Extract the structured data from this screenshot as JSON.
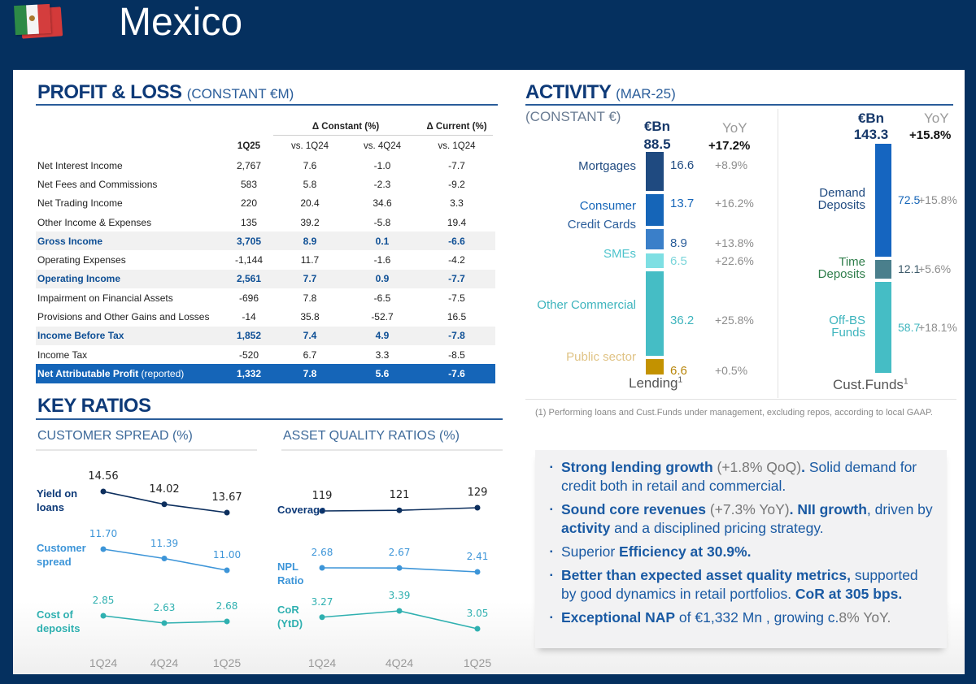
{
  "header": {
    "title": "Mexico",
    "flag_icon": "mexico-flag-icon"
  },
  "profit_loss": {
    "title": "PROFIT & LOSS",
    "subtitle": "(CONSTANT €M)",
    "group_headers": [
      "Δ Constant (%)",
      "Δ Current (%)"
    ],
    "columns": [
      "1Q25",
      "vs. 1Q24",
      "vs. 4Q24",
      "vs. 1Q24"
    ],
    "rows": [
      {
        "label": "Net Interest Income",
        "note": "",
        "values": [
          "2,767",
          "7.6",
          "-1.0",
          "-7.7"
        ],
        "style": "normal"
      },
      {
        "label": "Net Fees and Commissions",
        "note": "",
        "values": [
          "583",
          "5.8",
          "-2.3",
          "-9.2"
        ],
        "style": "normal"
      },
      {
        "label": "Net Trading Income",
        "note": "",
        "values": [
          "220",
          "20.4",
          "34.6",
          "3.3"
        ],
        "style": "normal"
      },
      {
        "label": "Other Income & Expenses",
        "note": "",
        "values": [
          "135",
          "39.2",
          "-5.8",
          "19.4"
        ],
        "style": "normal"
      },
      {
        "label": "Gross Income",
        "note": "",
        "values": [
          "3,705",
          "8.9",
          "0.1",
          "-6.6"
        ],
        "style": "hl"
      },
      {
        "label": "Operating Expenses",
        "note": "",
        "values": [
          "-1,144",
          "11.7",
          "-1.6",
          "-4.2"
        ],
        "style": "normal"
      },
      {
        "label": "Operating Income",
        "note": "",
        "values": [
          "2,561",
          "7.7",
          "0.9",
          "-7.7"
        ],
        "style": "hl"
      },
      {
        "label": "Impairment on Financial Assets",
        "note": "",
        "values": [
          "-696",
          "7.8",
          "-6.5",
          "-7.5"
        ],
        "style": "normal"
      },
      {
        "label": "Provisions and Other Gains and Losses",
        "note": "",
        "values": [
          "-14",
          "35.8",
          "-52.7",
          "16.5"
        ],
        "style": "normal"
      },
      {
        "label": "Income Before Tax",
        "note": "",
        "values": [
          "1,852",
          "7.4",
          "4.9",
          "-7.8"
        ],
        "style": "hl"
      },
      {
        "label": "Income Tax",
        "note": "",
        "values": [
          "-520",
          "6.7",
          "3.3",
          "-8.5"
        ],
        "style": "normal"
      },
      {
        "label": "Net Attributable Profit",
        "note": " (reported)",
        "values": [
          "1,332",
          "7.8",
          "5.6",
          "-7.6"
        ],
        "style": "total"
      }
    ]
  },
  "activity": {
    "title": "ACTIVITY",
    "subtitle": "(MAR-25)",
    "unit_note": "(CONSTANT €)",
    "unit": "€Bn",
    "yoy_header": "YoY",
    "footnote": "(1) Performing loans and Cust.Funds under management, excluding repos, according to local GAAP.",
    "lending": {
      "caption": "Lending",
      "caption_sup": "1",
      "total": "88.5",
      "total_yoy": "+17.2%",
      "segments": [
        {
          "label": "Mortgages",
          "value": 16.6,
          "value_text": "16.6",
          "yoy": "+8.9%",
          "color": "#1f4a80",
          "label_color": "#1f4a80",
          "value_color": "#1f4a80"
        },
        {
          "label": "Consumer",
          "value": 13.7,
          "value_text": "13.7",
          "yoy": "+16.2%",
          "color": "#1565b8",
          "label_color": "#1565b8",
          "value_color": "#1565b8"
        },
        {
          "label": "Credit Cards",
          "value": 8.9,
          "value_text": "8.9",
          "yoy": "+13.8%",
          "color": "#3a7fc9",
          "label_color": "#2a5d9a",
          "value_color": "#2a5d9a"
        },
        {
          "label": "SMEs",
          "value": 6.5,
          "value_text": "6.5",
          "yoy": "+22.6%",
          "color": "#7edfe3",
          "label_color": "#4cc3cc",
          "value_color": "#7ad5da"
        },
        {
          "label": "Other Commercial",
          "value": 36.2,
          "value_text": "36.2",
          "yoy": "+25.8%",
          "color": "#45bdc5",
          "label_color": "#3db4bd",
          "value_color": "#3db4bd"
        },
        {
          "label": "Public sector",
          "value": 6.6,
          "value_text": "6.6",
          "yoy": "+0.5%",
          "color": "#c39200",
          "label_color": "#e0c385",
          "value_color": "#b8860b"
        }
      ]
    },
    "customer_funds": {
      "caption": "Cust.Funds",
      "caption_sup": "1",
      "total": "143.3",
      "total_yoy": "+15.8%",
      "segments": [
        {
          "label_lines": [
            "Demand",
            "Deposits"
          ],
          "value": 72.5,
          "value_text": "72.5",
          "yoy": "+15.8%",
          "color": "#1565c0",
          "label_color": "#1f4a80",
          "value_color": "#1565b8"
        },
        {
          "label_lines": [
            "Time",
            "Deposits"
          ],
          "value": 12.1,
          "value_text": "12.1",
          "yoy": "+5.6%",
          "color": "#4a7f8c",
          "label_color": "#2e7d4a",
          "value_color": "#3d5a6a"
        },
        {
          "label_lines": [
            "Off-BS",
            "Funds"
          ],
          "value": 58.7,
          "value_text": "58.7",
          "yoy": "+18.1%",
          "color": "#45bdc5",
          "label_color": "#3db4bd",
          "value_color": "#3db4bd"
        }
      ]
    }
  },
  "key_ratios": {
    "title": "KEY RATIOS",
    "x_labels": [
      "1Q24",
      "4Q24",
      "1Q25"
    ],
    "customer_spread": {
      "title": "CUSTOMER SPREAD (%)",
      "series": [
        {
          "name_lines": [
            "Yield on",
            "loans"
          ],
          "values": [
            14.56,
            13.67
          ],
          "labels": [
            "14.56",
            "14.02",
            "13.67"
          ],
          "points": [
            14.56,
            14.02,
            13.67
          ],
          "color": "#0d2f5e",
          "label_color": "#0e3a78",
          "val_color": "#222"
        },
        {
          "name_lines": [
            "Customer",
            "spread"
          ],
          "labels": [
            "11.70",
            "11.39",
            "11.00"
          ],
          "points": [
            11.7,
            11.39,
            11.0
          ],
          "color": "#3d95d8",
          "label_color": "#3d95d8",
          "val_color": "#3d95d8"
        },
        {
          "name_lines": [
            "Cost of",
            "deposits"
          ],
          "labels": [
            "2.85",
            "2.63",
            "2.68"
          ],
          "points": [
            2.85,
            2.63,
            2.68
          ],
          "color": "#2fb0b0",
          "label_color": "#2fb0b0",
          "val_color": "#2fb0b0"
        }
      ]
    },
    "asset_quality": {
      "title": "ASSET QUALITY RATIOS (%)",
      "series": [
        {
          "name_lines": [
            "Coverage"
          ],
          "labels": [
            "119",
            "121",
            "129"
          ],
          "points": [
            119,
            121,
            129
          ],
          "color": "#0d2f5e",
          "label_color": "#0e3a78",
          "val_color": "#222"
        },
        {
          "name_lines": [
            "NPL",
            "Ratio"
          ],
          "labels": [
            "2.68",
            "2.67",
            "2.41"
          ],
          "points": [
            2.68,
            2.67,
            2.41
          ],
          "color": "#3d95d8",
          "label_color": "#3d95d8",
          "val_color": "#3d95d8"
        },
        {
          "name_lines": [
            "CoR",
            "(YtD)"
          ],
          "labels": [
            "3.27",
            "3.39",
            "3.05"
          ],
          "points": [
            3.27,
            3.39,
            3.05
          ],
          "color": "#2fb0b0",
          "label_color": "#2fb0b0",
          "val_color": "#2fb0b0"
        }
      ]
    }
  },
  "highlights": [
    {
      "parts": [
        {
          "t": "Strong lending growth",
          "s": "b"
        },
        {
          "t": " (+1.8% QoQ)",
          "s": "grey"
        },
        {
          "t": ".",
          "s": "b"
        },
        {
          "t": "  Solid demand for credit both in retail and commercial.",
          "s": ""
        }
      ]
    },
    {
      "parts": [
        {
          "t": "Sound core revenues",
          "s": "b"
        },
        {
          "t": " (+7.3% YoY)",
          "s": "grey"
        },
        {
          "t": ". NII growth",
          "s": "b"
        },
        {
          "t": ", driven by ",
          "s": ""
        },
        {
          "t": "activity",
          "s": "b"
        },
        {
          "t": " and a disciplined pricing strategy.",
          "s": ""
        }
      ]
    },
    {
      "parts": [
        {
          "t": "Superior ",
          "s": ""
        },
        {
          "t": "Efficiency at 30.9%.",
          "s": "b"
        }
      ]
    },
    {
      "parts": [
        {
          "t": "Better than expected asset quality metrics,",
          "s": "b"
        },
        {
          "t": " supported by good  dynamics in  retail portfolios. ",
          "s": ""
        },
        {
          "t": "CoR at 305 bps.",
          "s": "b"
        }
      ]
    },
    {
      "parts": [
        {
          "t": "Exceptional NAP",
          "s": "b"
        },
        {
          "t": "  of  €1,332 Mn , growing c.",
          "s": ""
        },
        {
          "t": "8% YoY.",
          "s": "grey"
        }
      ]
    }
  ]
}
